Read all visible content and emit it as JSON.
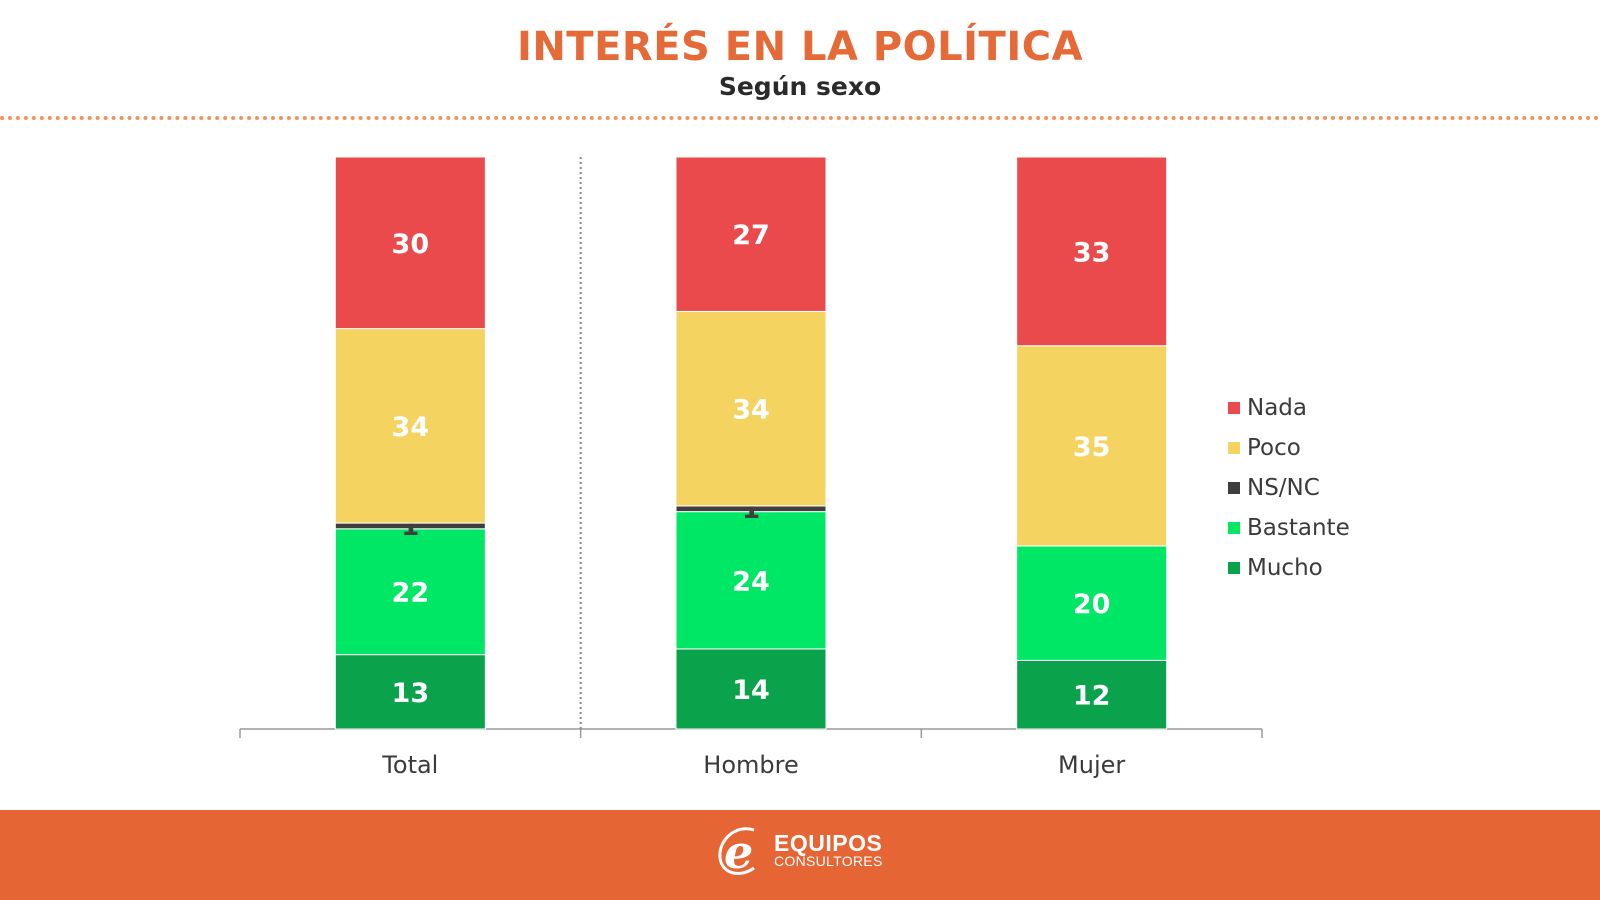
{
  "header": {
    "title": "INTERÉS EN LA POLÍTICA",
    "subtitle": "Según sexo"
  },
  "footer": {
    "logo_main": "EQUIPOS",
    "logo_sub": "CONSULTORES",
    "background_color": "#e66535"
  },
  "chart_data": {
    "type": "bar",
    "stacked": true,
    "title": "INTERÉS EN LA POLÍTICA",
    "subtitle": "Según sexo",
    "xlabel": "",
    "ylabel": "",
    "ylim": [
      0,
      100
    ],
    "grid": false,
    "legend_position": "right",
    "categories": [
      "Total",
      "Hombre",
      "Mujer"
    ],
    "series": [
      {
        "name": "Mucho",
        "color": "#0aa24a",
        "values": [
          13,
          14,
          12
        ]
      },
      {
        "name": "Bastante",
        "color": "#00e765",
        "values": [
          22,
          24,
          20
        ]
      },
      {
        "name": "NS/NC",
        "color": "#3e3e3e",
        "values": [
          1,
          1,
          0
        ]
      },
      {
        "name": "Poco",
        "color": "#f5d360",
        "values": [
          34,
          34,
          35
        ]
      },
      {
        "name": "Nada",
        "color": "#ea4a4b",
        "values": [
          30,
          27,
          33
        ]
      }
    ],
    "legend_order": [
      "Nada",
      "Poco",
      "NS/NC",
      "Bastante",
      "Mucho"
    ],
    "separator_after_category": "Total"
  }
}
